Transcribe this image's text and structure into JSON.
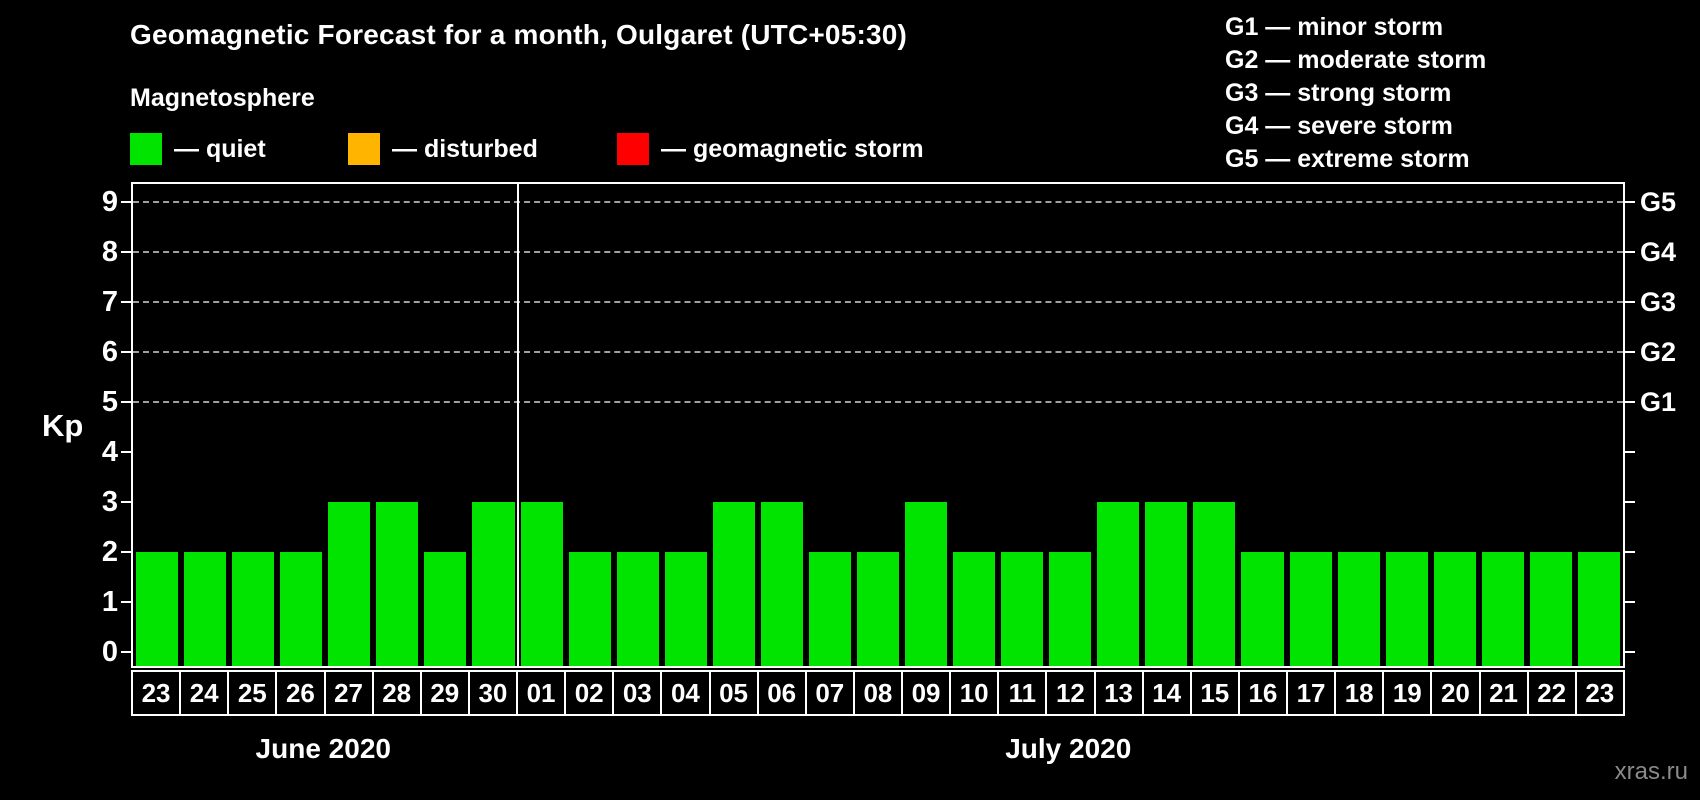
{
  "title": "Geomagnetic Forecast for a month, Oulgaret (UTC+05:30)",
  "subtitle": "Magnetosphere",
  "legend": {
    "items": [
      {
        "name": "quiet",
        "label": "— quiet",
        "color": "#00e400",
        "x": 0
      },
      {
        "name": "disturbed",
        "label": "— disturbed",
        "color": "#ffb400",
        "x": 218
      },
      {
        "name": "geomagnetic-storm",
        "label": "— geomagnetic storm",
        "color": "#ff0000",
        "x": 487
      }
    ]
  },
  "storm_scale": [
    "G1 — minor storm",
    "G2 — moderate storm",
    "G3 — strong storm",
    "G4 — severe storm",
    "G5 — extreme storm"
  ],
  "watermark": "xras.ru",
  "chart_data": {
    "type": "bar",
    "ylabel": "Kp",
    "ylim": [
      -0.32,
      9.4
    ],
    "y_ticks": [
      0,
      1,
      2,
      3,
      4,
      5,
      6,
      7,
      8,
      9
    ],
    "gridlines_at": [
      5,
      6,
      7,
      8,
      9
    ],
    "right_axis_labels": [
      {
        "value": 5,
        "label": "G1"
      },
      {
        "value": 6,
        "label": "G2"
      },
      {
        "value": 7,
        "label": "G3"
      },
      {
        "value": 8,
        "label": "G4"
      },
      {
        "value": 9,
        "label": "G5"
      }
    ],
    "bar_color": "#00e400",
    "grid_color": "#a0a0a0",
    "months": [
      {
        "label": "June 2020",
        "days": 8
      },
      {
        "label": "July 2020",
        "days": 23
      }
    ],
    "categories": [
      "23",
      "24",
      "25",
      "26",
      "27",
      "28",
      "29",
      "30",
      "01",
      "02",
      "03",
      "04",
      "05",
      "06",
      "07",
      "08",
      "09",
      "10",
      "11",
      "12",
      "13",
      "14",
      "15",
      "16",
      "17",
      "18",
      "19",
      "20",
      "21",
      "22",
      "23"
    ],
    "values": [
      2,
      2,
      2,
      2,
      3,
      3,
      2,
      3,
      3,
      2,
      2,
      2,
      3,
      3,
      2,
      2,
      3,
      2,
      2,
      2,
      3,
      3,
      3,
      2,
      2,
      2,
      2,
      2,
      2,
      2,
      2
    ]
  }
}
